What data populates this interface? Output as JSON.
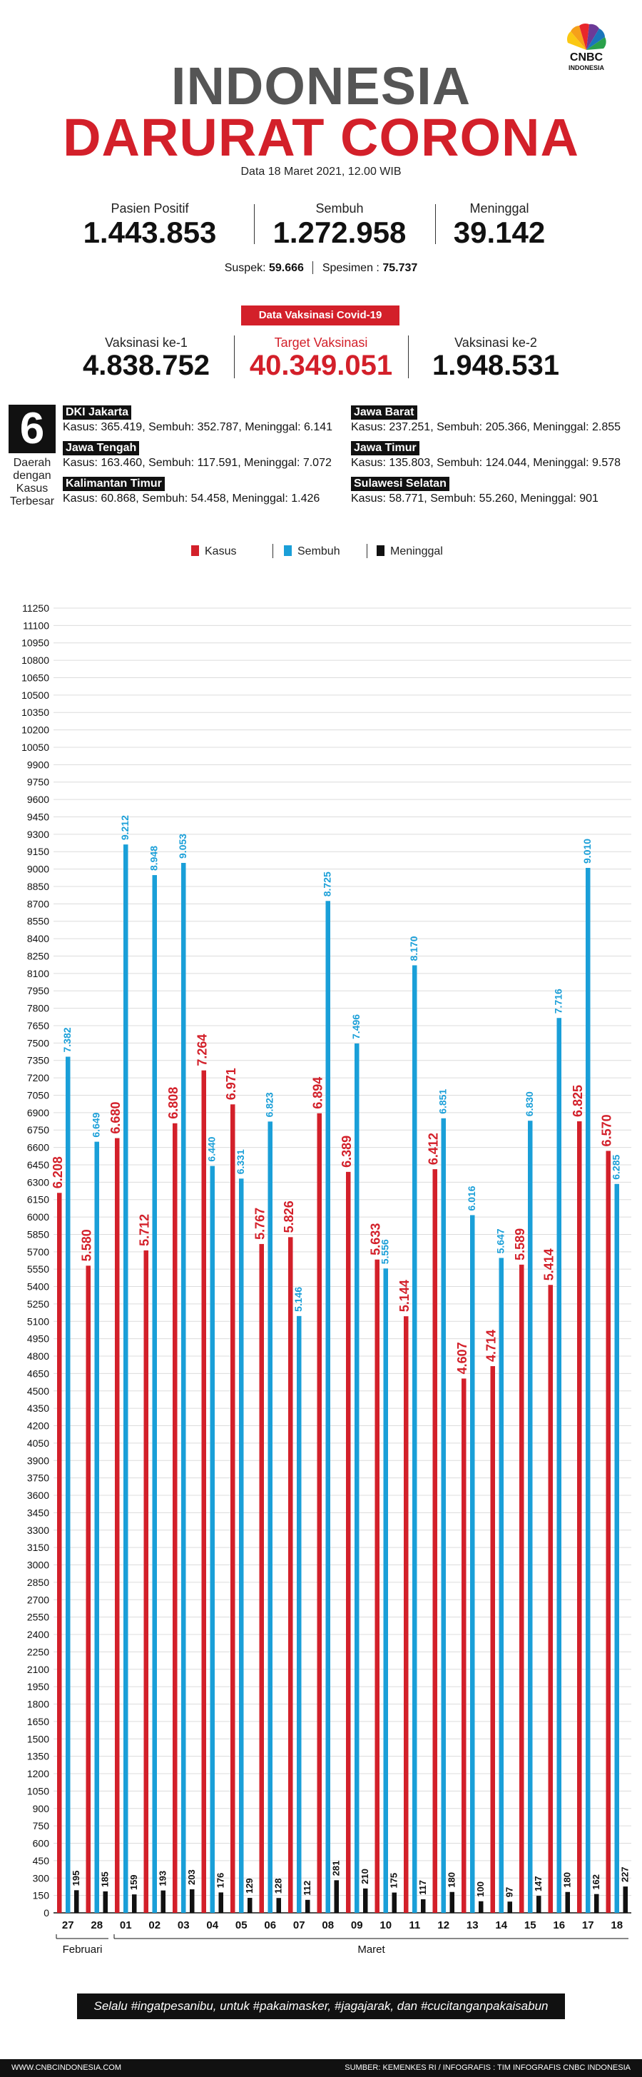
{
  "header": {
    "title_line1": "INDONESIA",
    "title_line2": "DARURAT CORONA",
    "date": "Data 18 Maret 2021, 12.00 WIB",
    "logo_text": "CNBC",
    "logo_sub": "INDONESIA"
  },
  "stats": {
    "positif_label": "Pasien Positif",
    "positif_value": "1.443.853",
    "sembuh_label": "Sembuh",
    "sembuh_value": "1.272.958",
    "meninggal_label": "Meninggal",
    "meninggal_value": "39.142",
    "suspek_label": "Suspek:",
    "suspek_value": "59.666",
    "spesimen_label": "Spesimen :",
    "spesimen_value": "75.737"
  },
  "vaksin": {
    "badge": "Data Vaksinasi Covid-19",
    "ke1_label": "Vaksinasi ke-1",
    "ke1_value": "4.838.752",
    "target_label": "Target Vaksinasi",
    "target_value": "40.349.051",
    "ke2_label": "Vaksinasi ke-2",
    "ke2_value": "1.948.531"
  },
  "regions": {
    "count": "6",
    "caption_lines": [
      "Daerah",
      "dengan",
      "Kasus",
      "Terbesar"
    ],
    "items": [
      {
        "name": "DKI Jakarta",
        "stats": "Kasus: 365.419, Sembuh: 352.787, Meninggal: 6.141"
      },
      {
        "name": "Jawa Barat",
        "stats": "Kasus: 237.251, Sembuh: 205.366, Meninggal: 2.855"
      },
      {
        "name": "Jawa Tengah",
        "stats": "Kasus: 163.460, Sembuh: 117.591, Meninggal: 7.072"
      },
      {
        "name": "Jawa Timur",
        "stats": "Kasus: 135.803, Sembuh: 124.044, Meninggal: 9.578"
      },
      {
        "name": "Kalimantan Timur",
        "stats": "Kasus: 60.868, Sembuh: 54.458, Meninggal: 1.426"
      },
      {
        "name": "Sulawesi Selatan",
        "stats": "Kasus: 58.771, Sembuh: 55.260, Meninggal: 901"
      }
    ]
  },
  "legend": {
    "kasus": "Kasus",
    "sembuh": "Sembuh",
    "meninggal": "Meninggal"
  },
  "colors": {
    "kasus": "#d3202a",
    "sembuh": "#1a9fd8",
    "meninggal": "#111111"
  },
  "chart_data": {
    "type": "bar",
    "categories": [
      "27",
      "28",
      "01",
      "02",
      "03",
      "04",
      "05",
      "06",
      "07",
      "08",
      "09",
      "10",
      "11",
      "12",
      "13",
      "14",
      "15",
      "16",
      "17",
      "18"
    ],
    "month_groups": [
      {
        "label": "Februari",
        "from": 0,
        "to": 1
      },
      {
        "label": "Maret",
        "from": 2,
        "to": 19
      }
    ],
    "series": [
      {
        "name": "Kasus",
        "values": [
          6208,
          5580,
          6680,
          5712,
          6808,
          7264,
          6971,
          5767,
          5826,
          6894,
          6389,
          5633,
          5144,
          6412,
          4607,
          4714,
          5589,
          5414,
          6825,
          6570
        ],
        "labels": [
          "6.208",
          "5.580",
          "6.680",
          "5.712",
          "6.808",
          "7.264",
          "6.971",
          "5.767",
          "5.826",
          "6.894",
          "6.389",
          "5.633",
          "5.144",
          "6.412",
          "4.607",
          "4.714",
          "5.589",
          "5.414",
          "6.825",
          "6.570"
        ]
      },
      {
        "name": "Sembuh",
        "values": [
          7382,
          6649,
          9212,
          8948,
          9053,
          6440,
          6331,
          6823,
          5146,
          8725,
          7496,
          5556,
          8170,
          6851,
          6016,
          5647,
          6830,
          7716,
          9010,
          6285
        ],
        "labels": [
          "7.382",
          "6.649",
          "9.212",
          "8.948",
          "9.053",
          "6.440",
          "6.331",
          "6.823",
          "5.146",
          "8.725",
          "7.496",
          "5.556",
          "8.170",
          "6.851",
          "6.016",
          "5.647",
          "6.830",
          "7.716",
          "9.010",
          "6.285"
        ]
      },
      {
        "name": "Meninggal",
        "values": [
          195,
          185,
          159,
          193,
          203,
          176,
          129,
          128,
          112,
          281,
          210,
          175,
          117,
          180,
          100,
          97,
          147,
          180,
          162,
          227
        ],
        "labels": [
          "195",
          "185",
          "159",
          "193",
          "203",
          "176",
          "129",
          "128",
          "112",
          "281",
          "210",
          "175",
          "117",
          "180",
          "100",
          "97",
          "147",
          "180",
          "162",
          "227"
        ]
      }
    ],
    "ylim": [
      0,
      11250
    ],
    "ytick_step": 150,
    "grid": true,
    "legend_position": "top-center"
  },
  "footer": {
    "banner": "Selalu #ingatpesanibu, untuk #pakaimasker, #jagajarak, dan #cucitanganpakaisabun",
    "site": "WWW.CNBCINDONESIA.COM",
    "source": "SUMBER: KEMENKES RI / INFOGRAFIS : TIM INFOGRAFIS CNBC INDONESIA"
  }
}
